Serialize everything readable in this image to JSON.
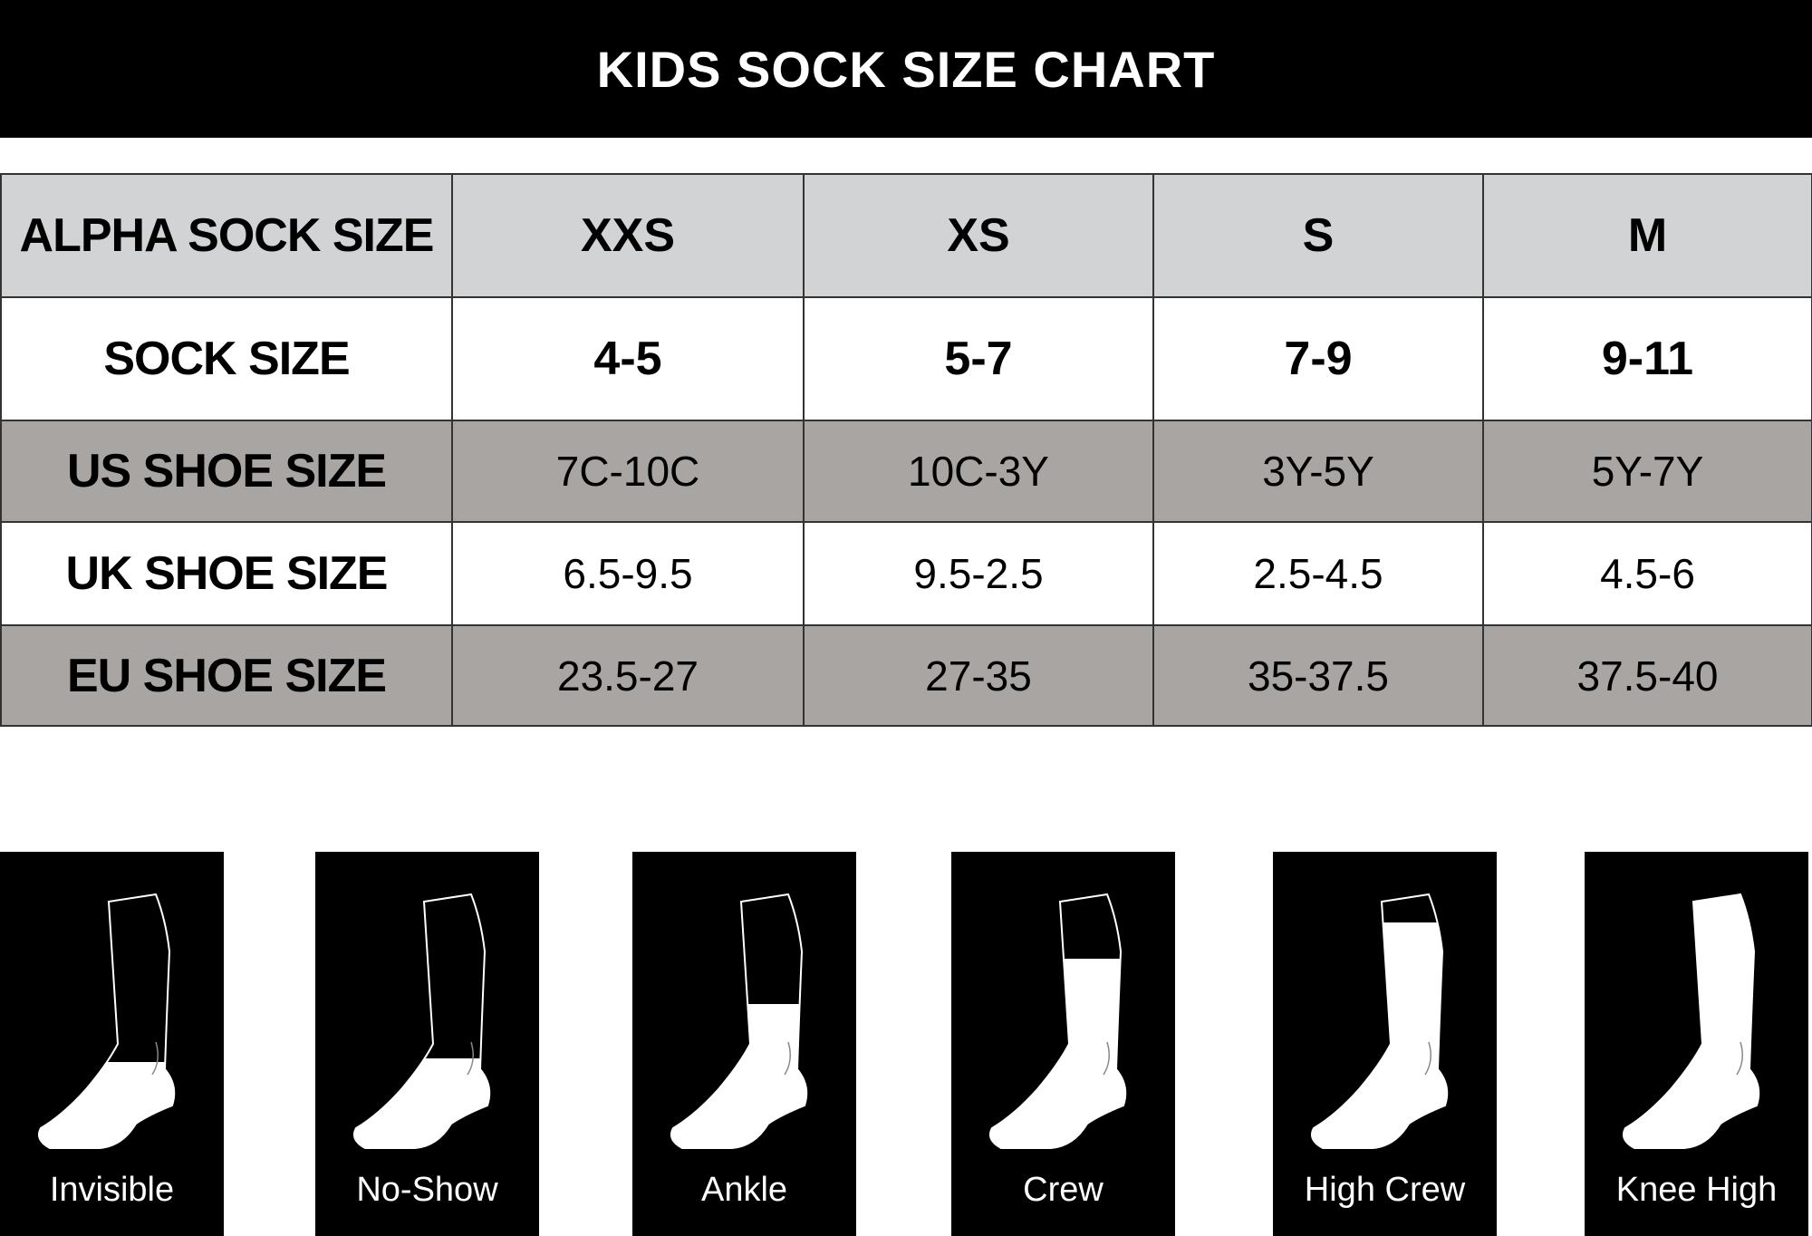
{
  "title": "KIDS SOCK SIZE CHART",
  "table": {
    "rows": [
      {
        "label": "ALPHA SOCK SIZE",
        "values": [
          "XXS",
          "XS",
          "S",
          "M"
        ]
      },
      {
        "label": "SOCK SIZE",
        "values": [
          "4-5",
          "5-7",
          "7-9",
          "9-11"
        ]
      },
      {
        "label": "US SHOE SIZE",
        "values": [
          "7C-10C",
          "10C-3Y",
          "3Y-5Y",
          "5Y-7Y"
        ]
      },
      {
        "label": "UK SHOE SIZE",
        "values": [
          "6.5-9.5",
          "9.5-2.5",
          "2.5-4.5",
          "4.5-6"
        ]
      },
      {
        "label": "EU SHOE SIZE",
        "values": [
          "23.5-27",
          "27-35",
          "35-37.5",
          "37.5-40"
        ]
      }
    ]
  },
  "colors": {
    "header_row": "#d1d3d4",
    "shaded_row": "#a8a5a2",
    "title_bar": "#000000"
  },
  "sock_styles": [
    {
      "label": "Invisible",
      "icon": "invisible-sock-icon"
    },
    {
      "label": "No-Show",
      "icon": "no-show-sock-icon"
    },
    {
      "label": "Ankle",
      "icon": "ankle-sock-icon"
    },
    {
      "label": "Crew",
      "icon": "crew-sock-icon"
    },
    {
      "label": "High Crew",
      "icon": "high-crew-sock-icon"
    },
    {
      "label": "Knee High",
      "icon": "knee-high-sock-icon"
    }
  ]
}
